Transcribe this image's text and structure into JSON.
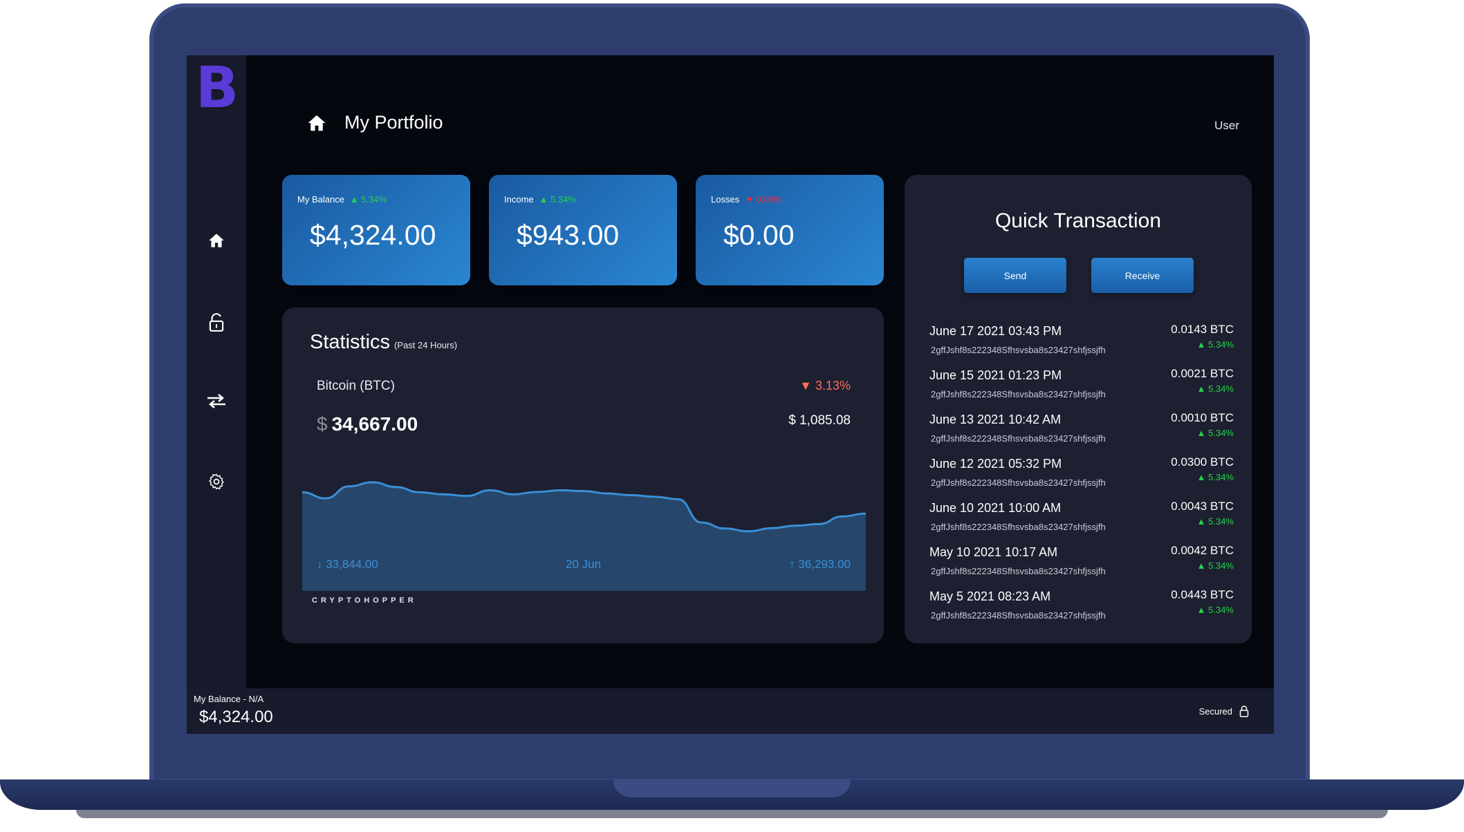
{
  "app": {
    "logo_letter": "B",
    "page_title": "My Portfolio",
    "user_label": "User"
  },
  "sidebar": {
    "items": [
      {
        "icon": "home-icon"
      },
      {
        "icon": "unlock-icon"
      },
      {
        "icon": "transfer-arrows-icon"
      },
      {
        "icon": "gear-icon"
      }
    ]
  },
  "cards": [
    {
      "label": "My Balance",
      "change": "▲ 5.34%",
      "direction": "up",
      "value": "$4,324.00"
    },
    {
      "label": "Income",
      "change": "▲ 5.34%",
      "direction": "up",
      "value": "$943.00"
    },
    {
      "label": "Losses",
      "change": "▼ 0.00%",
      "direction": "down",
      "value": "$0.00"
    }
  ],
  "statistics": {
    "title": "Statistics",
    "subtitle": "(Past 24 Hours)",
    "coin": "Bitcoin (BTC)",
    "change": "▼ 3.13%",
    "currency": "$",
    "price": "34,667.00",
    "delta": "$ 1,085.08",
    "low": "↓ 33,844.00",
    "date": "20 Jun",
    "high": "↑ 36,293.00",
    "brand": "CRYPTOHOPPER"
  },
  "chart_data": {
    "type": "area",
    "title": "",
    "xlabel": "",
    "ylabel": "",
    "x": [
      0,
      1,
      2,
      3,
      4,
      5,
      6,
      7,
      8,
      9,
      10,
      11,
      12,
      13,
      14,
      15,
      16,
      17,
      18,
      19,
      20,
      21,
      22,
      23,
      24
    ],
    "values": [
      35650,
      35500,
      35800,
      35900,
      35780,
      35650,
      35600,
      35560,
      35700,
      35600,
      35660,
      35700,
      35680,
      35620,
      35580,
      35540,
      35480,
      34900,
      34750,
      34680,
      34760,
      34820,
      34860,
      35050,
      35120
    ],
    "ylim": [
      33200,
      36293
    ],
    "fill_color": "#26476b",
    "line_color": "#3a8fd8"
  },
  "quick_transaction": {
    "title": "Quick Transaction",
    "send_label": "Send",
    "receive_label": "Receive",
    "transactions": [
      {
        "date": "June 17 2021 03:43 PM",
        "hash": "2gffJshf8s222348Sfhsvsba8s23427shfjssjfh",
        "amount": "0.0143 BTC",
        "change": "▲ 5.34%"
      },
      {
        "date": "June 15 2021 01:23 PM",
        "hash": "2gffJshf8s222348Sfhsvsba8s23427shfjssjfh",
        "amount": "0.0021 BTC",
        "change": "▲ 5.34%"
      },
      {
        "date": "June 13 2021 10:42 AM",
        "hash": "2gffJshf8s222348Sfhsvsba8s23427shfjssjfh",
        "amount": "0.0010 BTC",
        "change": "▲ 5.34%"
      },
      {
        "date": "June 12 2021 05:32 PM",
        "hash": "2gffJshf8s222348Sfhsvsba8s23427shfjssjfh",
        "amount": "0.0300 BTC",
        "change": "▲ 5.34%"
      },
      {
        "date": "June 10 2021 10:00 AM",
        "hash": "2gffJshf8s222348Sfhsvsba8s23427shfjssjfh",
        "amount": "0.0043 BTC",
        "change": "▲ 5.34%"
      },
      {
        "date": "May 10 2021 10:17 AM",
        "hash": "2gffJshf8s222348Sfhsvsba8s23427shfjssjfh",
        "amount": "0.0042 BTC",
        "change": "▲ 5.34%"
      },
      {
        "date": "May 5 2021 08:23 AM",
        "hash": "2gffJshf8s222348Sfhsvsba8s23427shfjssjfh",
        "amount": "0.0443 BTC",
        "change": "▲ 5.34%"
      }
    ]
  },
  "footer": {
    "balance_label": "My Balance - N/A",
    "balance_value": "$4,324.00",
    "secure_label": "Secured"
  },
  "colors": {
    "accent": "#2a86d2",
    "up": "#23d44a",
    "down": "#ff2a3a",
    "logo": "#5a3bd6"
  }
}
